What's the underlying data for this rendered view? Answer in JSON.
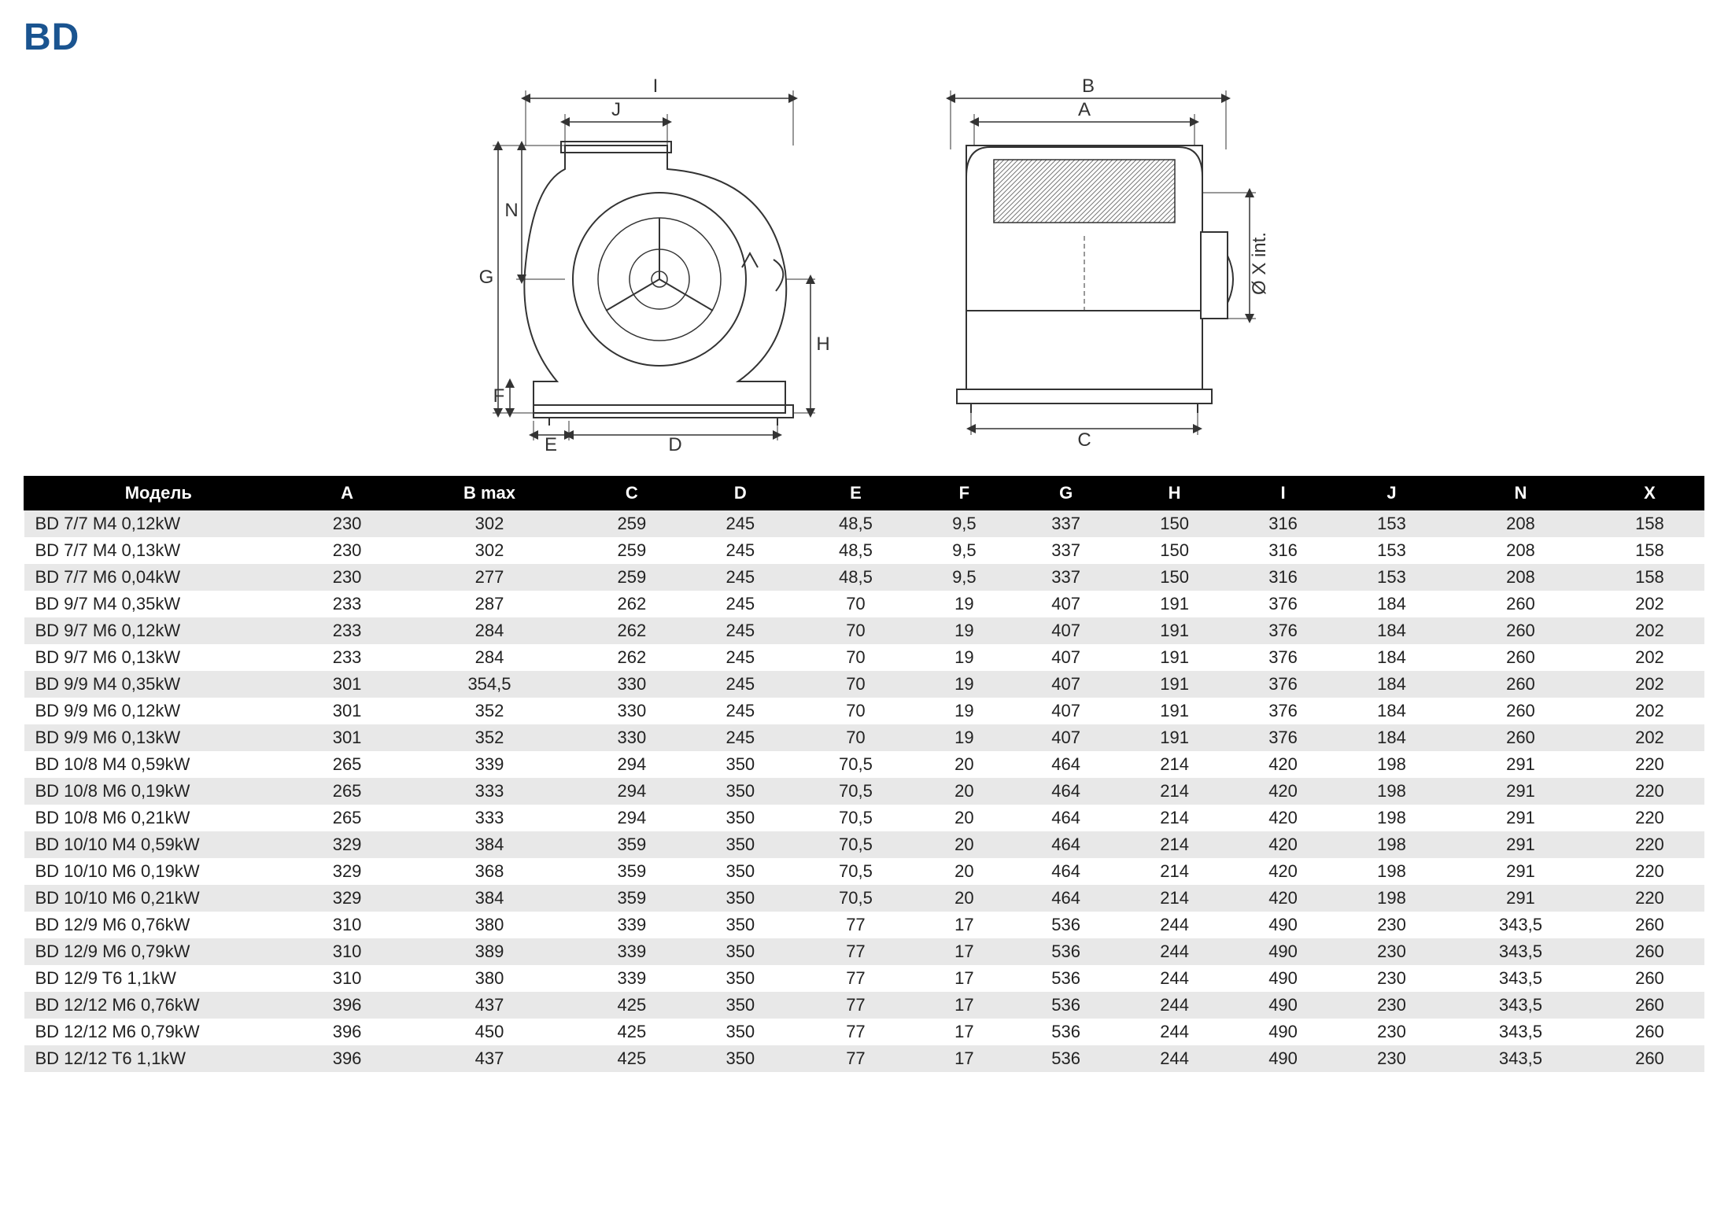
{
  "title": "BD",
  "diagram": {
    "labels_left": [
      "I",
      "J",
      "N",
      "G",
      "F",
      "E",
      "D",
      "H"
    ],
    "labels_right": [
      "B",
      "A",
      "C",
      "Ø X int."
    ]
  },
  "table": {
    "columns": [
      "Модель",
      "A",
      "B max",
      "C",
      "D",
      "E",
      "F",
      "G",
      "H",
      "I",
      "J",
      "N",
      "X"
    ],
    "rows": [
      [
        "BD 7/7 M4 0,12kW",
        "230",
        "302",
        "259",
        "245",
        "48,5",
        "9,5",
        "337",
        "150",
        "316",
        "153",
        "208",
        "158"
      ],
      [
        "BD 7/7 M4 0,13kW",
        "230",
        "302",
        "259",
        "245",
        "48,5",
        "9,5",
        "337",
        "150",
        "316",
        "153",
        "208",
        "158"
      ],
      [
        "BD 7/7 M6 0,04kW",
        "230",
        "277",
        "259",
        "245",
        "48,5",
        "9,5",
        "337",
        "150",
        "316",
        "153",
        "208",
        "158"
      ],
      [
        "BD 9/7 M4 0,35kW",
        "233",
        "287",
        "262",
        "245",
        "70",
        "19",
        "407",
        "191",
        "376",
        "184",
        "260",
        "202"
      ],
      [
        "BD 9/7 M6 0,12kW",
        "233",
        "284",
        "262",
        "245",
        "70",
        "19",
        "407",
        "191",
        "376",
        "184",
        "260",
        "202"
      ],
      [
        "BD 9/7 M6 0,13kW",
        "233",
        "284",
        "262",
        "245",
        "70",
        "19",
        "407",
        "191",
        "376",
        "184",
        "260",
        "202"
      ],
      [
        "BD 9/9 M4 0,35kW",
        "301",
        "354,5",
        "330",
        "245",
        "70",
        "19",
        "407",
        "191",
        "376",
        "184",
        "260",
        "202"
      ],
      [
        "BD 9/9 M6 0,12kW",
        "301",
        "352",
        "330",
        "245",
        "70",
        "19",
        "407",
        "191",
        "376",
        "184",
        "260",
        "202"
      ],
      [
        "BD 9/9 M6 0,13kW",
        "301",
        "352",
        "330",
        "245",
        "70",
        "19",
        "407",
        "191",
        "376",
        "184",
        "260",
        "202"
      ],
      [
        "BD 10/8 M4 0,59kW",
        "265",
        "339",
        "294",
        "350",
        "70,5",
        "20",
        "464",
        "214",
        "420",
        "198",
        "291",
        "220"
      ],
      [
        "BD 10/8 M6 0,19kW",
        "265",
        "333",
        "294",
        "350",
        "70,5",
        "20",
        "464",
        "214",
        "420",
        "198",
        "291",
        "220"
      ],
      [
        "BD 10/8 M6 0,21kW",
        "265",
        "333",
        "294",
        "350",
        "70,5",
        "20",
        "464",
        "214",
        "420",
        "198",
        "291",
        "220"
      ],
      [
        "BD 10/10 M4 0,59kW",
        "329",
        "384",
        "359",
        "350",
        "70,5",
        "20",
        "464",
        "214",
        "420",
        "198",
        "291",
        "220"
      ],
      [
        "BD 10/10 M6 0,19kW",
        "329",
        "368",
        "359",
        "350",
        "70,5",
        "20",
        "464",
        "214",
        "420",
        "198",
        "291",
        "220"
      ],
      [
        "BD 10/10 M6 0,21kW",
        "329",
        "384",
        "359",
        "350",
        "70,5",
        "20",
        "464",
        "214",
        "420",
        "198",
        "291",
        "220"
      ],
      [
        "BD 12/9 M6 0,76kW",
        "310",
        "380",
        "339",
        "350",
        "77",
        "17",
        "536",
        "244",
        "490",
        "230",
        "343,5",
        "260"
      ],
      [
        "BD 12/9 M6 0,79kW",
        "310",
        "389",
        "339",
        "350",
        "77",
        "17",
        "536",
        "244",
        "490",
        "230",
        "343,5",
        "260"
      ],
      [
        "BD 12/9 T6 1,1kW",
        "310",
        "380",
        "339",
        "350",
        "77",
        "17",
        "536",
        "244",
        "490",
        "230",
        "343,5",
        "260"
      ],
      [
        "BD 12/12 M6 0,76kW",
        "396",
        "437",
        "425",
        "350",
        "77",
        "17",
        "536",
        "244",
        "490",
        "230",
        "343,5",
        "260"
      ],
      [
        "BD 12/12 M6 0,79kW",
        "396",
        "450",
        "425",
        "350",
        "77",
        "17",
        "536",
        "244",
        "490",
        "230",
        "343,5",
        "260"
      ],
      [
        "BD 12/12 T6 1,1kW",
        "396",
        "437",
        "425",
        "350",
        "77",
        "17",
        "536",
        "244",
        "490",
        "230",
        "343,5",
        "260"
      ]
    ],
    "header_bg": "#000000",
    "header_fg": "#ffffff",
    "row_odd_bg": "#e8e8e8",
    "row_even_bg": "#ffffff",
    "font_size": 22
  },
  "colors": {
    "title": "#1a5490",
    "stroke": "#333333",
    "hatch": "#888888"
  }
}
